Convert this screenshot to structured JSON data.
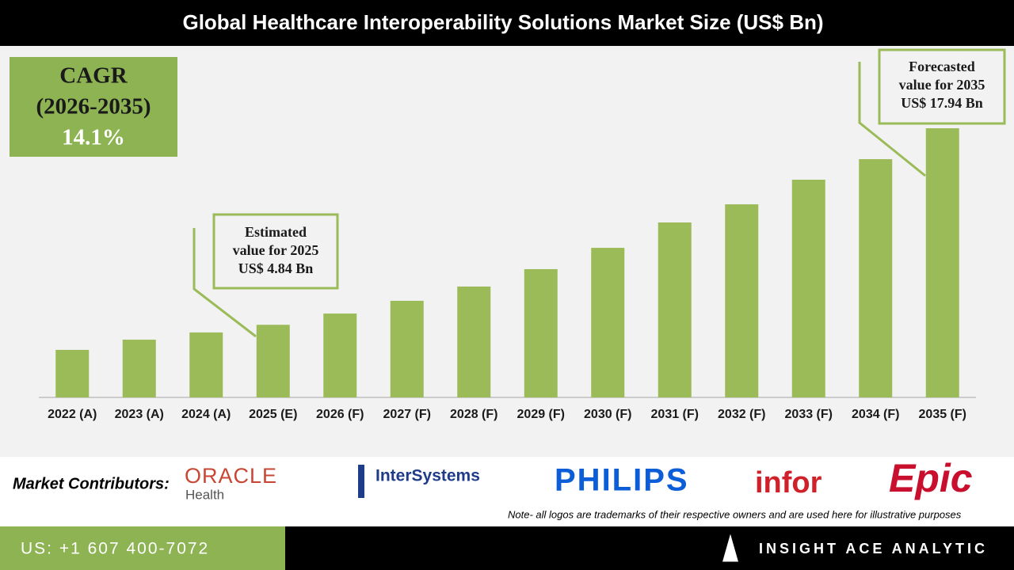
{
  "chart_data": {
    "type": "bar",
    "title": "Global Healthcare Interoperability Solutions Market Size (US$ Bn)",
    "categories": [
      "2022 (A)",
      "2023 (A)",
      "2024 (A)",
      "2025 (E)",
      "2026 (F)",
      "2027 (F)",
      "2028 (F)",
      "2029 (F)",
      "2030 (F)",
      "2031 (F)",
      "2032 (F)",
      "2033 (F)",
      "2034 (F)",
      "2035 (F)"
    ],
    "values": [
      3.17,
      3.85,
      4.33,
      4.84,
      5.59,
      6.44,
      7.39,
      8.55,
      9.97,
      11.66,
      12.87,
      14.51,
      15.88,
      17.94
    ],
    "color": "#9bbb59",
    "cagr": [
      "CAGR",
      "(2026-2035)",
      "14.1%"
    ],
    "annotations": [
      {
        "lines": [
          "Estimated",
          "value for 2025",
          "US$ 4.84 Bn"
        ]
      },
      {
        "lines": [
          "Forecasted",
          "value for 2035",
          "US$ 17.94 Bn"
        ]
      }
    ]
  },
  "contributors": {
    "label": "Market Contributors:",
    "logos": [
      "ORACLE",
      "Health",
      "InterSystems",
      "PHILIPS",
      "infor",
      "Epic"
    ],
    "note": "Note- all logos are trademarks of their respective owners and are used here for illustrative purposes"
  },
  "footer": {
    "phone": "US: +1 607 400-7072",
    "brand": "INSIGHT ACE ANALYTIC"
  }
}
